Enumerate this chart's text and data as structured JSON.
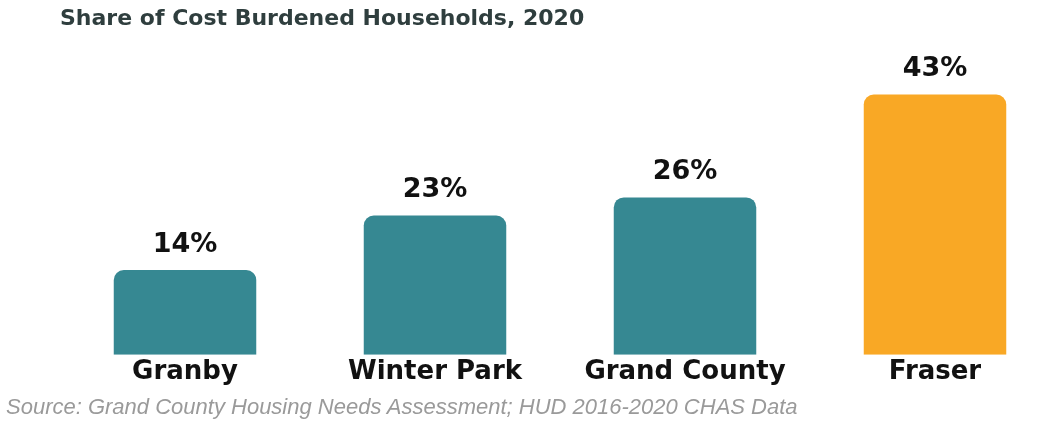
{
  "chart_data": {
    "type": "bar",
    "title": "Share of Cost Burdened Households, 2020",
    "categories": [
      "Granby",
      "Winter Park",
      "Grand County",
      "Fraser"
    ],
    "values": [
      14,
      23,
      26,
      43
    ],
    "colors": [
      "#368892",
      "#368892",
      "#368892",
      "#f9a825"
    ],
    "value_labels": [
      "14%",
      "23%",
      "26%",
      "43%"
    ],
    "grid": false,
    "legend": false,
    "annotations": [
      "Source: Grand County Housing Needs Assessment; HUD 2016-2020 CHAS Data"
    ]
  }
}
